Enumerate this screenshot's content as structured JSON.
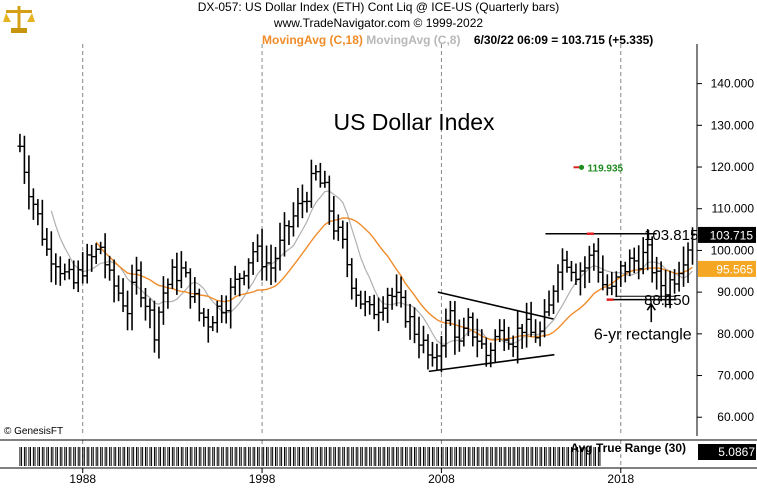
{
  "header": {
    "line1": "DX-057:  US Dollar Index (ETH) Cont Liq @ ICE-US  (Quarterly bars)",
    "line2": "www.TradeNavigator.com © 1999-2022",
    "ma18_label": "MovingAvg (C,18)",
    "ma8_label": "MovingAvg (C,8)",
    "quote": "6/30/22 06:09 = 103.715 (+5.335)"
  },
  "copyright": "© GenesisFT",
  "colors": {
    "ma18": "#f08c2a",
    "ma8": "#b0b0b0",
    "bars": "#000000",
    "grid": "#888888",
    "price_box": "#000000",
    "ma_box": "#f5a623",
    "green": "#1e8c1e",
    "red": "#e02020"
  },
  "chart_data": {
    "type": "ohlc",
    "title": "US Dollar Index",
    "frequency": "quarterly",
    "x_labels": [
      "1988",
      "1998",
      "2008",
      "2018"
    ],
    "y_ticks": [
      140,
      130,
      120,
      110,
      100,
      90,
      80,
      70,
      60
    ],
    "y_tick_labels": [
      "140.000",
      "130.000",
      "120.000",
      "110.000",
      "100.000",
      "90.000",
      "80.000",
      "70.000",
      "60.000"
    ],
    "ylim": [
      55.5,
      149.5
    ],
    "xlim": [
      1984.0,
      2022.75
    ],
    "last_price": "103.715",
    "ma18_value": "95.565",
    "closes": [
      [
        1985.0,
        125
      ],
      [
        1985.5,
        115
      ],
      [
        1986.0,
        108
      ],
      [
        1986.5,
        100
      ],
      [
        1987.0,
        98
      ],
      [
        1987.5,
        94
      ],
      [
        1988.0,
        92
      ],
      [
        1988.5,
        96
      ],
      [
        1989.0,
        98
      ],
      [
        1989.5,
        101
      ],
      [
        1990.0,
        93
      ],
      [
        1990.5,
        90
      ],
      [
        1991.0,
        86
      ],
      [
        1991.5,
        94
      ],
      [
        1992.0,
        88
      ],
      [
        1992.5,
        81
      ],
      [
        1993.0,
        90
      ],
      [
        1993.5,
        94
      ],
      [
        1994.0,
        95
      ],
      [
        1994.5,
        91
      ],
      [
        1995.0,
        85
      ],
      [
        1995.5,
        83
      ],
      [
        1996.0,
        86
      ],
      [
        1996.5,
        88
      ],
      [
        1997.0,
        92
      ],
      [
        1997.5,
        96
      ],
      [
        1998.0,
        100
      ],
      [
        1998.5,
        98
      ],
      [
        1999.0,
        96
      ],
      [
        1999.5,
        101
      ],
      [
        2000.0,
        106
      ],
      [
        2000.5,
        110
      ],
      [
        2001.0,
        114
      ],
      [
        2001.5,
        118
      ],
      [
        2002.0,
        114
      ],
      [
        2002.5,
        106
      ],
      [
        2003.0,
        101
      ],
      [
        2003.5,
        93
      ],
      [
        2004.0,
        88
      ],
      [
        2004.5,
        85
      ],
      [
        2005.0,
        87
      ],
      [
        2005.5,
        90
      ],
      [
        2006.0,
        88
      ],
      [
        2006.5,
        85
      ],
      [
        2007.0,
        81
      ],
      [
        2007.5,
        77
      ],
      [
        2008.0,
        72
      ],
      [
        2008.5,
        79
      ],
      [
        2009.0,
        85
      ],
      [
        2009.5,
        77
      ],
      [
        2010.0,
        82
      ],
      [
        2010.5,
        79
      ],
      [
        2011.0,
        75
      ],
      [
        2011.5,
        79
      ],
      [
        2012.0,
        81
      ],
      [
        2012.5,
        79
      ],
      [
        2013.0,
        82
      ],
      [
        2013.5,
        80
      ],
      [
        2014.0,
        80
      ],
      [
        2014.5,
        86
      ],
      [
        2015.0,
        97
      ],
      [
        2015.5,
        98
      ],
      [
        2016.0,
        95
      ],
      [
        2016.5,
        96
      ],
      [
        2017.0,
        100
      ],
      [
        2017.5,
        92
      ],
      [
        2018.0,
        90
      ],
      [
        2018.5,
        95
      ],
      [
        2019.0,
        97
      ],
      [
        2019.5,
        98
      ],
      [
        2020.0,
        99
      ],
      [
        2020.5,
        93
      ],
      [
        2021.0,
        91
      ],
      [
        2021.5,
        94
      ],
      [
        2022.0,
        99
      ],
      [
        2022.5,
        103.715
      ]
    ],
    "indicators": [
      {
        "name": "MovingAvg (C,18)",
        "value": "95.565"
      },
      {
        "name": "MovingAvg (C,8)"
      }
    ],
    "annotations": [
      {
        "text": "US Dollar Index",
        "x": 1996.5,
        "y": 126
      },
      {
        "text": "103.815",
        "x": 2019.8,
        "y": 103.815
      },
      {
        "text": "88.150",
        "x": 2019.8,
        "y": 88.15
      },
      {
        "text": "6-yr rectangle",
        "x": 2017.0,
        "y": 80
      },
      {
        "text": "119.935",
        "x": 2016.2,
        "y": 119.935
      }
    ],
    "subpanel": {
      "label": "Avg True Range (30)",
      "value": "5.0867"
    }
  }
}
